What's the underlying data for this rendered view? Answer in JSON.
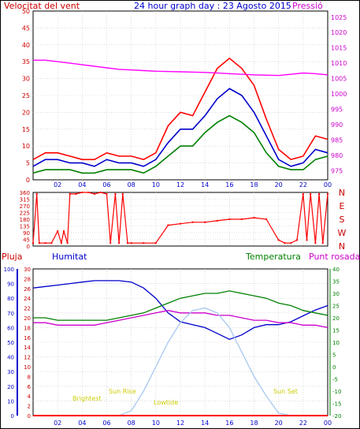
{
  "title": "24 hour graph day : 23 Agosto 2015",
  "chart_data": [
    {
      "type": "line",
      "panel": "wind-speed-pressure",
      "left_label": "Velocitat del vent",
      "right_label": "Pressió",
      "x_ticks": [
        "02",
        "04",
        "06",
        "08",
        "10",
        "12",
        "14",
        "16",
        "18",
        "20",
        "22",
        "00"
      ],
      "y_left_ticks": [
        "0",
        "5",
        "10",
        "15",
        "20",
        "25",
        "30",
        "35",
        "40",
        "45",
        "50"
      ],
      "y_left_range": [
        0,
        50
      ],
      "y_right_ticks": [
        "975",
        "980",
        "985",
        "990",
        "995",
        "1000",
        "1005",
        "1010",
        "1015",
        "1020",
        "1025"
      ],
      "y_right_range": [
        972,
        1027
      ],
      "x": [
        0,
        1,
        2,
        3,
        4,
        5,
        6,
        7,
        8,
        9,
        10,
        11,
        12,
        13,
        14,
        15,
        16,
        17,
        18,
        19,
        20,
        21,
        22,
        23,
        24
      ],
      "series": [
        {
          "key": "gust",
          "color": "#ff0000",
          "values": [
            6,
            8,
            8,
            7,
            6,
            6,
            8,
            7,
            7,
            6,
            8,
            16,
            20,
            19,
            26,
            33,
            36,
            33,
            28,
            18,
            9,
            6,
            7,
            13,
            12
          ]
        },
        {
          "key": "speed",
          "color": "#0000cc",
          "values": [
            4,
            6,
            6,
            5,
            5,
            4,
            6,
            5,
            5,
            4,
            6,
            11,
            15,
            15,
            19,
            24,
            27,
            25,
            20,
            13,
            6,
            4,
            5,
            9,
            8
          ]
        },
        {
          "key": "min",
          "color": "#008000",
          "values": [
            2,
            3,
            3,
            3,
            2,
            2,
            3,
            3,
            3,
            2,
            4,
            7,
            10,
            10,
            14,
            17,
            19,
            17,
            14,
            8,
            4,
            3,
            3,
            6,
            7
          ]
        },
        {
          "key": "pressure",
          "color": "#ff00ff",
          "axis": "right",
          "values": [
            1011,
            1011,
            1010.5,
            1010,
            1009.5,
            1009,
            1008.5,
            1008,
            1007.8,
            1007.6,
            1007.4,
            1007.3,
            1007.2,
            1007.1,
            1007,
            1006.8,
            1006.6,
            1006.4,
            1006.2,
            1006.1,
            1006,
            1006.4,
            1006.8,
            1006.6,
            1006.2
          ]
        }
      ]
    },
    {
      "type": "line",
      "panel": "wind-direction",
      "y_left_ticks": [
        "0",
        "45",
        "90",
        "135",
        "180",
        "225",
        "270",
        "315",
        "360"
      ],
      "y_left_range": [
        0,
        360
      ],
      "y_right_ticks": [
        "N",
        "W",
        "S",
        "E",
        "N"
      ],
      "x": [
        0,
        0.3,
        0.5,
        1,
        1.5,
        2,
        2.3,
        2.5,
        2.8,
        3,
        3.5,
        4,
        4.5,
        5,
        5.5,
        6,
        6.3,
        6.7,
        7,
        7.3,
        7.7,
        8,
        9,
        10,
        11,
        12,
        13,
        14,
        15,
        16,
        17,
        18,
        19,
        20,
        20.5,
        21,
        21.5,
        22,
        22.3,
        22.6,
        23,
        23.3,
        23.6,
        24
      ],
      "series": [
        {
          "key": "direction",
          "color": "#ff0000",
          "values": [
            20,
            350,
            20,
            20,
            20,
            100,
            20,
            100,
            20,
            350,
            350,
            360,
            360,
            350,
            360,
            350,
            20,
            350,
            20,
            350,
            20,
            20,
            20,
            20,
            140,
            150,
            160,
            160,
            170,
            180,
            180,
            190,
            180,
            40,
            20,
            20,
            40,
            350,
            40,
            350,
            20,
            350,
            20,
            350
          ]
        }
      ]
    },
    {
      "type": "line",
      "panel": "rain-humidity-temperature",
      "labels": [
        "Pluja",
        "Humitat",
        "Temperatura",
        "Punt rosada"
      ],
      "rain_ticks": [
        "0",
        "2",
        "4",
        "6",
        "8",
        "10",
        "12",
        "14",
        "16",
        "18",
        "20",
        "22",
        "24",
        "26",
        "28",
        "30"
      ],
      "rain_range": [
        0,
        30
      ],
      "humidity_ticks": [
        "0",
        "10",
        "20",
        "30",
        "40",
        "50",
        "60",
        "70",
        "80",
        "90",
        "100"
      ],
      "humidity_range": [
        0,
        100
      ],
      "temperature_ticks": [
        "-20",
        "-15",
        "-10",
        "-5",
        "0",
        "5",
        "10",
        "15",
        "20",
        "25",
        "30",
        "35",
        "40"
      ],
      "temperature_range": [
        -20,
        40
      ],
      "annotations": [
        "Brightest",
        "Sun Rise",
        "Lowtide",
        "Sun Set"
      ],
      "x": [
        0,
        1,
        2,
        3,
        4,
        5,
        6,
        7,
        8,
        9,
        10,
        11,
        12,
        13,
        14,
        15,
        16,
        17,
        18,
        19,
        20,
        21,
        22,
        23,
        24
      ],
      "series": [
        {
          "key": "humidity",
          "color": "#0000cc",
          "axis": "humidity",
          "values": [
            87,
            88,
            89,
            90,
            91,
            92,
            92,
            92,
            91,
            87,
            80,
            70,
            64,
            62,
            60,
            56,
            52,
            55,
            60,
            62,
            62,
            64,
            68,
            72,
            75
          ]
        },
        {
          "key": "temperature",
          "color": "#008000",
          "axis": "temperature",
          "values": [
            20,
            20,
            19,
            19,
            19,
            19,
            19,
            20,
            21,
            22,
            24,
            26,
            28,
            29,
            30,
            30,
            31,
            30,
            29,
            28,
            26,
            25,
            23,
            22,
            21
          ]
        },
        {
          "key": "dewpoint",
          "color": "#cc00cc",
          "axis": "temperature",
          "values": [
            18,
            18,
            17,
            17,
            17,
            17,
            18,
            19,
            20,
            21,
            22,
            23,
            22,
            22,
            22,
            21,
            21,
            20,
            19,
            19,
            18,
            18,
            17,
            17,
            16
          ]
        },
        {
          "key": "solar",
          "color": "#a8c8f0",
          "axis": "temperature",
          "values": [
            -20,
            -20,
            -20,
            -20,
            -20,
            -20,
            -20,
            -20,
            -18,
            -10,
            0,
            10,
            18,
            23,
            24,
            22,
            16,
            6,
            -4,
            -12,
            -19,
            -20,
            -20,
            -20,
            -20
          ]
        },
        {
          "key": "rain",
          "color": "#ff0000",
          "axis": "rain",
          "values": [
            0,
            0,
            0,
            0,
            0,
            0,
            0,
            0,
            0,
            0,
            0,
            0,
            0,
            0,
            0,
            0,
            0,
            0,
            0,
            0,
            0,
            0,
            0,
            0,
            0
          ]
        }
      ]
    }
  ],
  "colors": {
    "red": "#ff0000",
    "blue": "#0000cc",
    "green": "#008000",
    "magenta": "#cc00cc",
    "grid": "#c0c0c0",
    "background": "#ffffff"
  }
}
